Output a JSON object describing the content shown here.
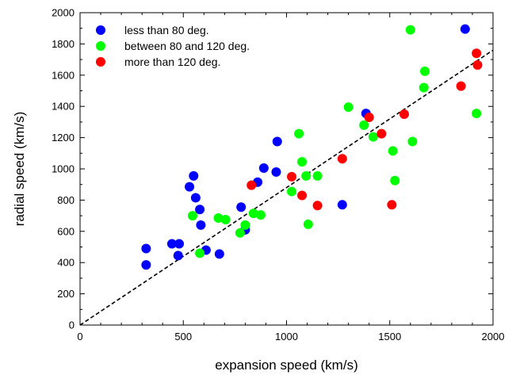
{
  "chart_data": {
    "type": "scatter",
    "xlabel": "expansion speed (km/s)",
    "ylabel": "radial speed (km/s)",
    "xlim": [
      0,
      2000
    ],
    "ylim": [
      0,
      2000
    ],
    "xticks": [
      "0",
      "500",
      "1000",
      "1500",
      "2000"
    ],
    "yticks": [
      "0",
      "200",
      "400",
      "600",
      "800",
      "1000",
      "1200",
      "1400",
      "1600",
      "1800",
      "2000"
    ],
    "grid": false,
    "legend_position": "top-left",
    "series": [
      {
        "name": "less than 80 deg.",
        "color": "#0000ff",
        "points": [
          [
            320,
            490
          ],
          [
            320,
            385
          ],
          [
            445,
            520
          ],
          [
            480,
            520
          ],
          [
            475,
            445
          ],
          [
            530,
            885
          ],
          [
            550,
            955
          ],
          [
            560,
            815
          ],
          [
            580,
            740
          ],
          [
            585,
            640
          ],
          [
            610,
            480
          ],
          [
            675,
            455
          ],
          [
            780,
            755
          ],
          [
            800,
            610
          ],
          [
            860,
            915
          ],
          [
            890,
            1005
          ],
          [
            950,
            980
          ],
          [
            955,
            1175
          ],
          [
            1270,
            770
          ],
          [
            1385,
            1355
          ],
          [
            1865,
            1895
          ]
        ]
      },
      {
        "name": "between 80 and 120 deg.",
        "color": "#00ff00",
        "points": [
          [
            545,
            700
          ],
          [
            580,
            460
          ],
          [
            670,
            685
          ],
          [
            705,
            675
          ],
          [
            775,
            590
          ],
          [
            800,
            640
          ],
          [
            840,
            715
          ],
          [
            875,
            705
          ],
          [
            1025,
            855
          ],
          [
            1060,
            1225
          ],
          [
            1075,
            1045
          ],
          [
            1095,
            955
          ],
          [
            1105,
            645
          ],
          [
            1150,
            955
          ],
          [
            1300,
            1395
          ],
          [
            1375,
            1280
          ],
          [
            1420,
            1205
          ],
          [
            1515,
            1115
          ],
          [
            1525,
            925
          ],
          [
            1600,
            1890
          ],
          [
            1610,
            1175
          ],
          [
            1665,
            1520
          ],
          [
            1670,
            1625
          ],
          [
            1920,
            1355
          ]
        ]
      },
      {
        "name": "more than 120 deg.",
        "color": "#ff0000",
        "points": [
          [
            830,
            895
          ],
          [
            1025,
            950
          ],
          [
            1075,
            830
          ],
          [
            1150,
            765
          ],
          [
            1270,
            1065
          ],
          [
            1400,
            1330
          ],
          [
            1460,
            1225
          ],
          [
            1510,
            770
          ],
          [
            1570,
            1350
          ],
          [
            1845,
            1530
          ],
          [
            1920,
            1740
          ],
          [
            1925,
            1665
          ]
        ]
      }
    ],
    "fit_line": {
      "style": "dashed",
      "from": [
        0,
        0
      ],
      "to": [
        2000,
        1760
      ]
    }
  }
}
